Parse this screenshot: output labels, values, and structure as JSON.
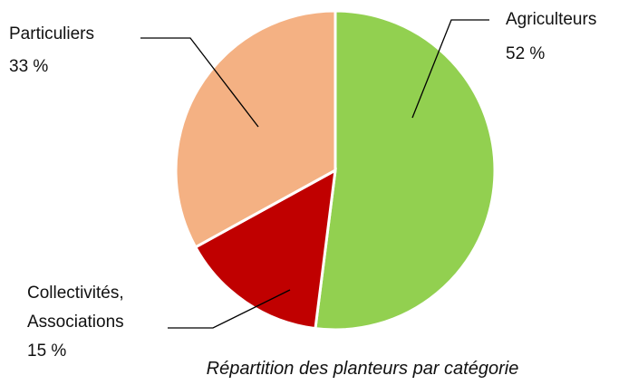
{
  "chart_data": {
    "type": "pie",
    "title": "Répartition des planteurs par catégorie",
    "categories": [
      "Agriculteurs",
      "Collectivités, Associations",
      "Particuliers"
    ],
    "values": [
      52,
      15,
      33
    ],
    "value_labels": [
      "52 %",
      "15 %",
      "33 %"
    ],
    "colors": [
      "#92d050",
      "#c00000",
      "#f4b183"
    ]
  }
}
